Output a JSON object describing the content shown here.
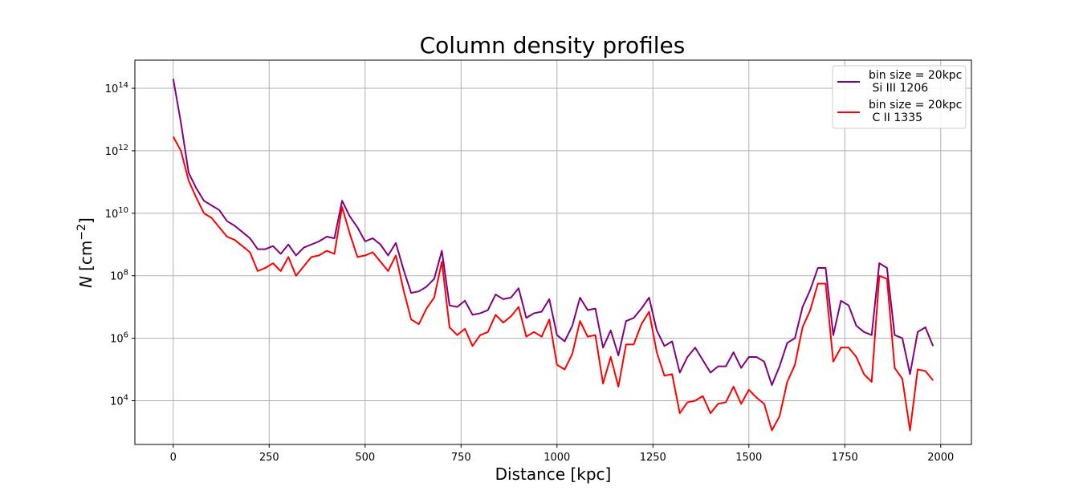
{
  "chart_data": {
    "type": "line",
    "title": "Column density profiles",
    "xlabel": "Distance [kpc]",
    "ylabel_symbol": "N",
    "ylabel_unit": "[cm",
    "ylabel_exp": "−2",
    "ylabel_close": "]",
    "yscale": "log",
    "xlim": [
      -100,
      2080
    ],
    "ylim_exponent": [
      2.6,
      14.9
    ],
    "grid": true,
    "legend_position": "upper right",
    "x_ticks": [
      0,
      250,
      500,
      750,
      1000,
      1250,
      1500,
      1750,
      2000
    ],
    "x_tick_labels": [
      "0",
      "250",
      "500",
      "750",
      "1000",
      "1250",
      "1500",
      "1750",
      "2000"
    ],
    "y_ticks_exponent": [
      4,
      6,
      8,
      10,
      12,
      14
    ],
    "y_tick_base": "10",
    "y_tick_exps": [
      "4",
      "6",
      "8",
      "10",
      "12",
      "14"
    ],
    "x": [
      0,
      20,
      40,
      60,
      80,
      100,
      120,
      140,
      160,
      180,
      200,
      220,
      240,
      260,
      280,
      300,
      320,
      340,
      360,
      380,
      400,
      420,
      440,
      460,
      480,
      500,
      520,
      540,
      560,
      580,
      600,
      620,
      640,
      660,
      680,
      700,
      720,
      740,
      760,
      780,
      800,
      820,
      840,
      860,
      880,
      900,
      920,
      940,
      960,
      980,
      1000,
      1020,
      1040,
      1060,
      1080,
      1100,
      1120,
      1140,
      1160,
      1180,
      1200,
      1220,
      1240,
      1260,
      1280,
      1300,
      1320,
      1340,
      1360,
      1380,
      1400,
      1420,
      1440,
      1460,
      1480,
      1500,
      1520,
      1540,
      1560,
      1580,
      1600,
      1620,
      1640,
      1660,
      1680,
      1700,
      1720,
      1740,
      1760,
      1780,
      1800,
      1820,
      1840,
      1860,
      1880,
      1900,
      1920,
      1940,
      1960,
      1980
    ],
    "series": [
      {
        "name": "bin size = 20kpc",
        "name_line2": " Si III 1206",
        "color": "#800080",
        "log10_values": [
          14.3,
          12.9,
          11.3,
          10.8,
          10.4,
          10.25,
          10.1,
          9.75,
          9.6,
          9.4,
          9.2,
          8.85,
          8.85,
          8.95,
          8.7,
          9.0,
          8.65,
          8.9,
          9.0,
          9.1,
          9.25,
          9.2,
          10.4,
          9.9,
          9.55,
          9.1,
          9.2,
          9.0,
          8.65,
          9.05,
          8.2,
          7.45,
          7.5,
          7.65,
          7.9,
          8.8,
          7.05,
          7.0,
          7.2,
          6.75,
          6.8,
          6.9,
          7.4,
          7.25,
          7.3,
          7.6,
          6.65,
          6.8,
          6.85,
          7.25,
          6.1,
          5.9,
          6.4,
          7.3,
          6.9,
          6.95,
          5.7,
          6.25,
          5.45,
          6.55,
          6.65,
          6.95,
          7.3,
          6.25,
          5.75,
          5.9,
          4.9,
          5.4,
          5.7,
          5.3,
          4.9,
          5.1,
          5.1,
          5.55,
          5.05,
          5.4,
          5.4,
          5.25,
          4.5,
          5.1,
          5.85,
          6.0,
          7.0,
          7.55,
          8.25,
          8.25,
          6.1,
          7.2,
          7.05,
          6.4,
          6.2,
          6.1,
          8.4,
          8.25,
          6.1,
          6.0,
          4.85,
          6.2,
          6.35,
          5.75
        ]
      },
      {
        "name": "bin size = 20kpc",
        "name_line2": " C II 1335",
        "color": "#ff0000",
        "log10_values": [
          12.45,
          12.0,
          11.05,
          10.5,
          10.0,
          9.85,
          9.55,
          9.25,
          9.15,
          8.95,
          8.75,
          8.15,
          8.25,
          8.4,
          8.15,
          8.6,
          8.0,
          8.3,
          8.6,
          8.65,
          8.8,
          8.7,
          10.2,
          9.35,
          8.6,
          8.65,
          8.75,
          8.45,
          8.15,
          8.65,
          7.55,
          6.6,
          6.45,
          6.95,
          7.3,
          8.45,
          6.35,
          6.1,
          6.3,
          5.75,
          6.1,
          6.2,
          6.75,
          6.5,
          6.7,
          7.0,
          6.05,
          6.2,
          6.05,
          6.6,
          5.15,
          5.0,
          5.5,
          6.55,
          6.05,
          6.1,
          4.55,
          5.4,
          4.45,
          5.8,
          5.8,
          6.45,
          6.85,
          5.55,
          4.8,
          4.85,
          3.6,
          3.95,
          4.0,
          4.15,
          3.6,
          3.9,
          3.95,
          4.45,
          3.9,
          4.35,
          4.1,
          3.9,
          3.05,
          3.5,
          4.6,
          5.15,
          6.35,
          6.9,
          7.75,
          7.75,
          5.25,
          5.7,
          5.7,
          5.4,
          4.85,
          4.6,
          8.0,
          7.9,
          5.05,
          4.7,
          3.05,
          5.0,
          4.95,
          4.65
        ]
      }
    ]
  }
}
